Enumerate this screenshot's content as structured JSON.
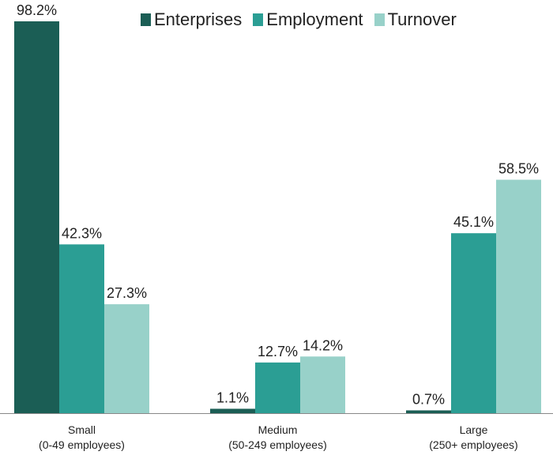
{
  "chart_data": {
    "type": "bar",
    "title": "",
    "xlabel": "",
    "ylabel": "",
    "ylim": [
      0,
      100
    ],
    "grid": false,
    "legend_position": "top",
    "categories": [
      [
        "Small",
        "(0-49 employees)"
      ],
      [
        "Medium",
        "(50-249 employees)"
      ],
      [
        "Large",
        "(250+ employees)"
      ]
    ],
    "series": [
      {
        "name": "Enterprises",
        "color": "#1b5e55",
        "values": [
          98.2,
          1.1,
          0.7
        ],
        "labels": [
          "98.2%",
          "1.1%",
          "0.7%"
        ]
      },
      {
        "name": "Employment",
        "color": "#2b9e94",
        "values": [
          42.3,
          12.7,
          45.1
        ],
        "labels": [
          "42.3%",
          "12.7%",
          "45.1%"
        ]
      },
      {
        "name": "Turnover",
        "color": "#98d1c9",
        "values": [
          27.3,
          14.2,
          58.5
        ],
        "labels": [
          "27.3%",
          "14.2%",
          "58.5%"
        ]
      }
    ]
  }
}
